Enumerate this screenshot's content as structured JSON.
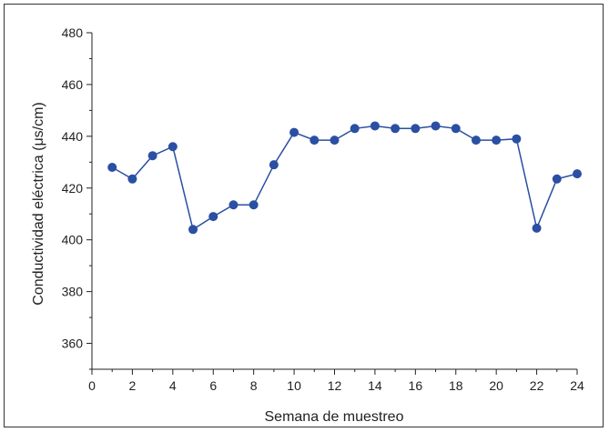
{
  "chart_data": {
    "type": "line",
    "title": "",
    "xlabel": "Semana de muestreo",
    "ylabel": "Conductividad eléctrica (μs/cm)",
    "xlim": [
      0,
      24
    ],
    "ylim": [
      350,
      480
    ],
    "xticks": [
      0,
      2,
      4,
      6,
      8,
      10,
      12,
      14,
      16,
      18,
      20,
      22,
      24
    ],
    "yticks": [
      360,
      380,
      400,
      420,
      440,
      460,
      480
    ],
    "grid": false,
    "series": [
      {
        "x": [
          1,
          2,
          3,
          4,
          5,
          6,
          7,
          8,
          9,
          10,
          11,
          12,
          13,
          14,
          15,
          16,
          17,
          18,
          19,
          20,
          21,
          22,
          23,
          24
        ],
        "y": [
          428,
          423.5,
          432.5,
          436,
          404,
          409,
          413.5,
          413.5,
          429,
          441.5,
          438.5,
          438.5,
          443,
          444,
          443,
          443,
          444,
          443,
          438.5,
          438.5,
          439,
          404.5,
          423.5,
          425.5
        ],
        "color": "#2a4fa3"
      }
    ]
  }
}
